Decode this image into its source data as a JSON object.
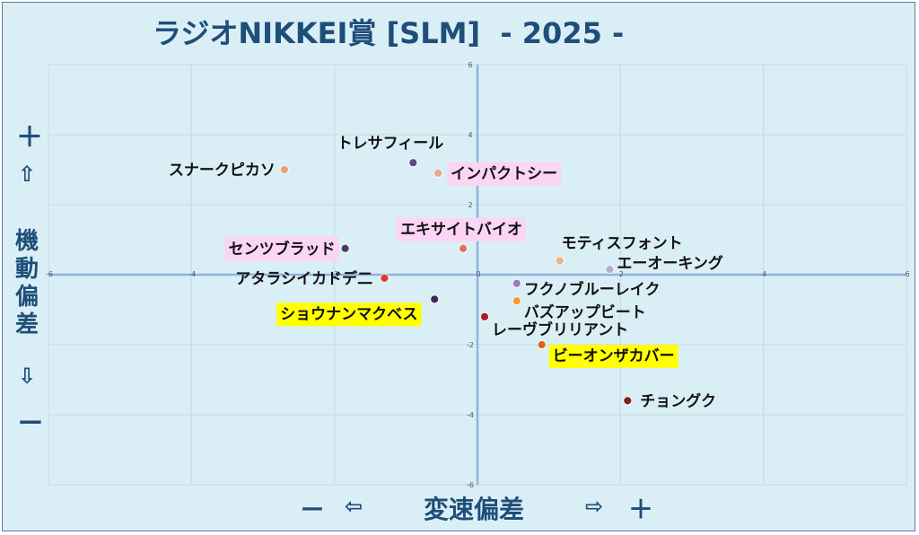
{
  "title": "ラジオNIKKEI賞 [SLM]  - 2025 -",
  "y_axis": {
    "plus_sign": "＋",
    "up_arrow": "⇧",
    "label_chars": [
      "機",
      "動",
      "偏",
      "差"
    ],
    "down_arrow": "⇩",
    "minus_sign": "ー"
  },
  "x_axis": {
    "minus_sign": "ー",
    "left_arrow": "⇦",
    "label": "変速偏差",
    "right_arrow": "⇨",
    "plus_sign": "＋"
  },
  "chart_data": {
    "type": "scatter",
    "title": "ラジオNIKKEI賞 [SLM]  - 2025 -",
    "xlabel": "変速偏差",
    "ylabel": "機動偏差",
    "xlim": [
      -6,
      6
    ],
    "ylim": [
      -6,
      6
    ],
    "xticks": [
      -6,
      -4,
      -2,
      0,
      2,
      4,
      6
    ],
    "yticks": [
      6,
      4,
      2,
      0,
      -2,
      -4,
      -6
    ],
    "grid": true,
    "points": [
      {
        "name": "スナークピカソ",
        "x": -2.7,
        "y": 3.0,
        "color": "#e8a070",
        "highlight": ""
      },
      {
        "name": "トレサフィール",
        "x": -0.9,
        "y": 3.2,
        "color": "#5a4a8a",
        "highlight": ""
      },
      {
        "name": "インパクトシー",
        "x": -0.55,
        "y": 2.9,
        "color": "#e8a890",
        "highlight": "#fcd4f4"
      },
      {
        "name": "エキサイトバイオ",
        "x": -0.2,
        "y": 0.75,
        "color": "#e07060",
        "highlight": "#fcd4f4"
      },
      {
        "name": "センツブラッド",
        "x": -1.85,
        "y": 0.75,
        "color": "#4a3a6a",
        "highlight": "#fcd4f4"
      },
      {
        "name": "アタラシイカドデ二",
        "x": -1.3,
        "y": -0.1,
        "color": "#d04030",
        "highlight": ""
      },
      {
        "name": "ショウナンマクベス",
        "x": -0.6,
        "y": -0.7,
        "color": "#3a2a5a",
        "highlight": "#ffff00"
      },
      {
        "name": "モティスフォント",
        "x": 1.15,
        "y": 0.4,
        "color": "#f0b080",
        "highlight": ""
      },
      {
        "name": "エーオーキング",
        "x": 1.85,
        "y": 0.15,
        "color": "#b8a8d0",
        "highlight": ""
      },
      {
        "name": "フクノブルーレイク",
        "x": 0.55,
        "y": -0.25,
        "color": "#9080c0",
        "highlight": ""
      },
      {
        "name": "バズアップビート",
        "x": 0.55,
        "y": -0.75,
        "color": "#f0a030",
        "highlight": ""
      },
      {
        "name": "レーヴブリリアント",
        "x": 0.1,
        "y": -1.2,
        "color": "#a02020",
        "highlight": ""
      },
      {
        "name": "ビーオンザカバー",
        "x": 0.9,
        "y": -2.0,
        "color": "#e06020",
        "highlight": "#ffff00"
      },
      {
        "name": "チョングク",
        "x": 2.1,
        "y": -3.6,
        "color": "#802020",
        "highlight": ""
      }
    ]
  }
}
